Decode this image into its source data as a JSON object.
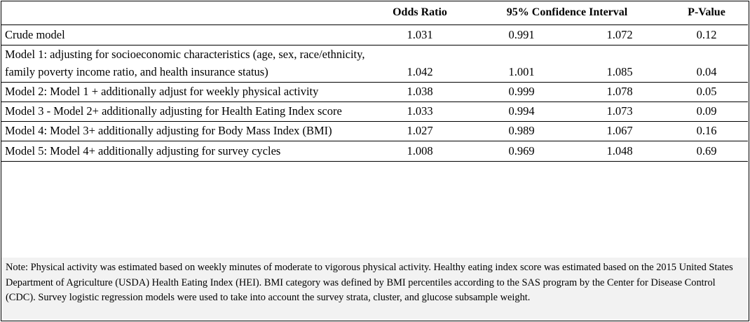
{
  "table": {
    "headers": {
      "label": "",
      "odds_ratio": "Odds Ratio",
      "ci": "95% Confidence Interval",
      "p_value": "P-Value"
    },
    "rows": [
      {
        "label": "Crude model",
        "odds_ratio": "1.031",
        "ci_low": "0.991",
        "ci_high": "1.072",
        "p_value": "0.12"
      },
      {
        "label": "Model 1: adjusting for socioeconomic characteristics (age, sex, race/ethnicity, family poverty income ratio, and health insurance status)",
        "odds_ratio": "1.042",
        "ci_low": "1.001",
        "ci_high": "1.085",
        "p_value": "0.04"
      },
      {
        "label": "Model 2: Model 1 + additionally adjust for weekly physical activity",
        "odds_ratio": "1.038",
        "ci_low": "0.999",
        "ci_high": "1.078",
        "p_value": "0.05"
      },
      {
        "label": "Model 3 - Model 2+  additionally adjusting for Health Eating Index  score",
        "odds_ratio": "1.033",
        "ci_low": "0.994",
        "ci_high": "1.073",
        "p_value": "0.09"
      },
      {
        "label": "Model 4: Model 3+ additionally adjusting for Body Mass Index (BMI)",
        "odds_ratio": "1.027",
        "ci_low": "0.989",
        "ci_high": "1.067",
        "p_value": "0.16"
      },
      {
        "label": "Model 5: Model 4+ additionally adjusting for survey cycles",
        "odds_ratio": "1.008",
        "ci_low": "0.969",
        "ci_high": "1.048",
        "p_value": "0.69"
      }
    ]
  },
  "note": "Note: Physical activity was estimated based on weekly minutes of moderate to vigorous physical activity. Healthy eating index score was estimated based on the 2015 United States Department of Agriculture (USDA) Health Eating Index (HEI). BMI category was defined by BMI percentiles according to the SAS program by the Center for Disease Control (CDC). Survey logistic regression models were used to take into account the survey strata, cluster, and glucose subsample weight.",
  "colors": {
    "border": "#000000",
    "note_background": "#f2f2f2"
  }
}
